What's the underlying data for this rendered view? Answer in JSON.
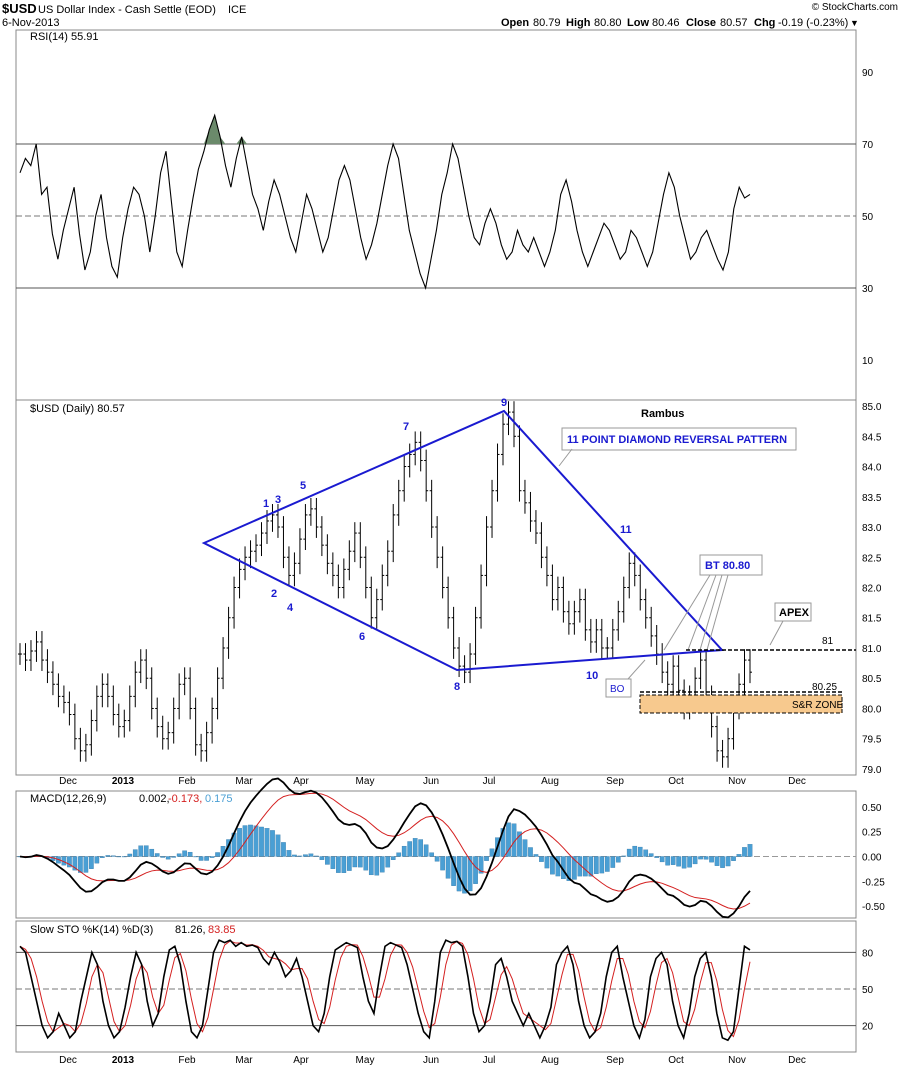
{
  "header": {
    "symbol": "$USD",
    "name": "US Dollar Index - Cash Settle (EOD)",
    "exchange": "ICE",
    "date": "6-Nov-2013",
    "open_label": "Open",
    "open": "80.79",
    "high_label": "High",
    "high": "80.80",
    "low_label": "Low",
    "low": "80.46",
    "close_label": "Close",
    "close": "80.57",
    "chg_label": "Chg",
    "chg": "-0.19 (-0.23%)",
    "copyright": "© StockCharts.com"
  },
  "colors": {
    "diamond": "#1a1ad0",
    "histogram": "#4a9fd4",
    "signal": "#d42020",
    "srzone": "#f7c98e",
    "rsi_fill": "#6b8a6b"
  },
  "chart_data": {
    "type": "line",
    "x_axis_months": [
      "Dec",
      "2013",
      "Feb",
      "Mar",
      "Apr",
      "May",
      "Jun",
      "Jul",
      "Aug",
      "Sep",
      "Oct",
      "Nov",
      "Dec"
    ],
    "rsi": {
      "label": "RSI(14) 55.91",
      "ylim": [
        0,
        100
      ],
      "ticks": [
        90,
        70,
        50,
        30,
        10
      ],
      "values": [
        62,
        66,
        64,
        70,
        56,
        58,
        45,
        38,
        46,
        52,
        58,
        45,
        35,
        40,
        50,
        56,
        44,
        36,
        33,
        44,
        52,
        58,
        56,
        50,
        40,
        50,
        62,
        68,
        54,
        40,
        36,
        46,
        55,
        63,
        68,
        74,
        78,
        72,
        64,
        58,
        66,
        72,
        64,
        56,
        52,
        46,
        54,
        60,
        56,
        50,
        44,
        40,
        48,
        56,
        52,
        46,
        40,
        44,
        52,
        60,
        64,
        60,
        52,
        44,
        38,
        42,
        48,
        56,
        64,
        70,
        66,
        56,
        46,
        40,
        34,
        30,
        38,
        46,
        56,
        62,
        70,
        66,
        58,
        50,
        44,
        42,
        48,
        52,
        48,
        42,
        38,
        40,
        46,
        42,
        40,
        44,
        40,
        36,
        40,
        46,
        56,
        60,
        54,
        46,
        40,
        36,
        40,
        44,
        48,
        46,
        42,
        38,
        40,
        46,
        44,
        40,
        36,
        40,
        48,
        56,
        62,
        58,
        50,
        44,
        38,
        40,
        44,
        46,
        42,
        38,
        35,
        40,
        52,
        58,
        55,
        56
      ]
    },
    "price": {
      "label": "$USD (Daily) 80.57",
      "ylim": [
        78.9,
        85.1
      ],
      "ticks": [
        85.0,
        84.5,
        84.0,
        83.5,
        83.0,
        82.5,
        82.0,
        81.5,
        81.0,
        80.5,
        80.0,
        79.5,
        79.0
      ],
      "values": [
        80.9,
        80.8,
        80.95,
        81.1,
        80.8,
        80.6,
        80.4,
        80.2,
        80.1,
        79.9,
        79.5,
        79.3,
        79.4,
        79.8,
        80.2,
        80.4,
        80.2,
        79.9,
        79.7,
        79.8,
        80.2,
        80.6,
        80.8,
        80.5,
        80.0,
        79.7,
        79.5,
        79.6,
        80.0,
        80.4,
        80.5,
        80.0,
        79.4,
        79.3,
        79.6,
        80.0,
        80.5,
        81.0,
        81.5,
        82.0,
        82.3,
        82.5,
        82.6,
        82.7,
        82.9,
        83.1,
        83.2,
        83.0,
        82.5,
        82.2,
        82.4,
        82.8,
        83.2,
        83.3,
        83.0,
        82.7,
        82.4,
        82.2,
        82.0,
        82.3,
        82.6,
        82.9,
        82.5,
        82.0,
        81.5,
        81.8,
        82.2,
        82.6,
        83.2,
        83.6,
        84.0,
        84.2,
        84.4,
        84.1,
        83.6,
        83.0,
        82.5,
        82.0,
        81.5,
        81.0,
        80.7,
        80.6,
        80.9,
        81.5,
        82.2,
        83.0,
        83.6,
        84.2,
        84.7,
        84.9,
        84.5,
        83.6,
        83.4,
        83.1,
        82.9,
        82.5,
        82.2,
        81.8,
        82.0,
        81.6,
        81.4,
        81.6,
        81.8,
        81.3,
        81.1,
        81.3,
        81.0,
        81.0,
        81.3,
        81.6,
        82.0,
        82.4,
        82.2,
        81.8,
        81.5,
        81.2,
        80.9,
        80.6,
        80.4,
        80.7,
        80.3,
        80.0,
        80.2,
        80.5,
        80.8,
        80.2,
        79.7,
        79.3,
        79.2,
        79.5,
        80.0,
        80.4,
        80.8,
        80.6
      ]
    },
    "annotations": {
      "author": "Rambus",
      "pattern_title": "11 POINT DIAMOND   REVERSAL PATTERN",
      "points": [
        "1",
        "2",
        "3",
        "4",
        "5",
        "6",
        "7",
        "8",
        "9",
        "10",
        "11"
      ],
      "bt": "BT 80.80",
      "bo": "BO",
      "apex": "APEX",
      "level_81": "81",
      "level_8025": "80.25",
      "sr_zone": "S&R ZONE"
    },
    "macd": {
      "label": "MACD(12,26,9)",
      "values_text": "0.002,",
      "signal_text": "-0.173,",
      "hist_text": "0.175",
      "ylim": [
        -0.62,
        0.66
      ],
      "ticks": [
        0.5,
        0.25,
        0.0,
        -0.25,
        -0.5
      ],
      "tick_labels": [
        "0.50",
        "0.25",
        "0.00",
        "-0.25",
        "-0.50"
      ]
    },
    "sto": {
      "label": "Slow STO %K(14) %D(3)",
      "k_text": "81.26,",
      "d_text": "83.85",
      "ylim": [
        0,
        100
      ],
      "ticks": [
        80,
        50,
        20
      ],
      "k": [
        85,
        80,
        60,
        40,
        20,
        10,
        15,
        30,
        20,
        10,
        15,
        40,
        60,
        80,
        70,
        40,
        20,
        10,
        15,
        35,
        60,
        80,
        70,
        40,
        20,
        30,
        60,
        82,
        85,
        70,
        40,
        15,
        10,
        20,
        50,
        80,
        90,
        88,
        90,
        85,
        88,
        85,
        86,
        84,
        75,
        70,
        80,
        72,
        60,
        65,
        75,
        60,
        40,
        20,
        15,
        30,
        60,
        82,
        85,
        88,
        86,
        84,
        60,
        40,
        30,
        60,
        85,
        88,
        86,
        84,
        70,
        50,
        30,
        15,
        10,
        40,
        80,
        90,
        88,
        89,
        85,
        60,
        30,
        15,
        20,
        40,
        70,
        75,
        60,
        40,
        30,
        20,
        30,
        20,
        10,
        20,
        35,
        70,
        80,
        85,
        70,
        40,
        20,
        10,
        15,
        30,
        60,
        80,
        85,
        60,
        40,
        20,
        10,
        25,
        60,
        75,
        80,
        70,
        40,
        20,
        10,
        30,
        60,
        75,
        80,
        60,
        30,
        10,
        8,
        15,
        50,
        85,
        82
      ]
    }
  }
}
